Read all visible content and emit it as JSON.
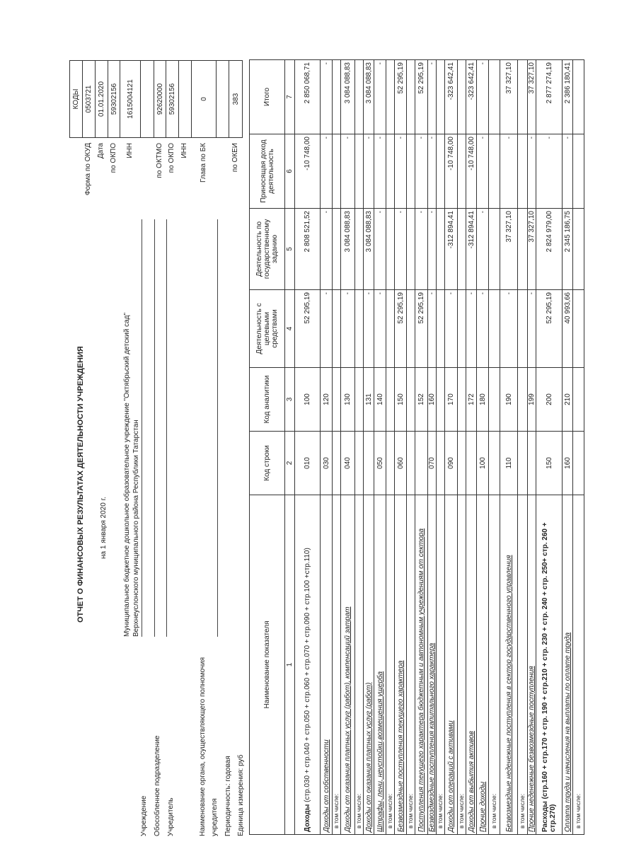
{
  "header": {
    "title": "ОТЧЕТ  О ФИНАНСОВЫХ РЕЗУЛЬТАТАХ ДЕЯТЕЛЬНОСТИ УЧРЕЖДЕНИЯ",
    "date": "на 1 января 2020 г.",
    "institution_label": "Учреждение",
    "institution_line1": "Муниципальное бюджетное дошкольное образовательное учреждение \"Октябрьский детский сад\"",
    "institution_line2": "Верхнеуслонского муниципального района Республики Татарстан",
    "subdivision_label": "Обособленное подразделение",
    "founder_label": "Учредитель",
    "authority_label_1": "Наименование органа, осуществляющего полномочия",
    "authority_label_2": "учредителя",
    "periodicity": "Периодичность:  годовая",
    "unit": "Единица измерения: руб"
  },
  "codes": {
    "header": "КОДЫ",
    "rows": [
      {
        "label": "Форма по ОКУД",
        "value": "0503721"
      },
      {
        "label": "Дата",
        "value": "01.01.2020"
      },
      {
        "label": "по ОКПО",
        "value": "59302156"
      },
      {
        "label": "ИНН",
        "value": "1615004121"
      },
      {
        "label": "",
        "value": ""
      },
      {
        "label": "по ОКТМО",
        "value": "92620000"
      },
      {
        "label": "по ОКПО",
        "value": "59302156"
      },
      {
        "label": "ИНН",
        "value": ""
      },
      {
        "label": "Глава по БК",
        "value": "0"
      },
      {
        "label": "",
        "value": ""
      },
      {
        "label": "по ОКЕИ",
        "value": "383"
      }
    ]
  },
  "table": {
    "columns": [
      "Наименование показателя",
      "Код строки",
      "Код аналитики",
      "Деятельность с целевыми средствами",
      "Деятельность по государственному заданию",
      "Приносящая доход деятельность",
      "Итого"
    ],
    "column_numbers": [
      "1",
      "2",
      "3",
      "4",
      "5",
      "6",
      "7"
    ],
    "rows": [
      {
        "bold": "Доходы",
        "name": " (стр.030 + стр.040 + стр.050 + стр.060 + стр.070 + стр.090 + стр.100 +стр.110)",
        "style": "total",
        "code": "010",
        "an": "100",
        "c4": "52 295,19",
        "c5": "2 808 521,52",
        "c6": "-10 748,00",
        "c7": "2 850 068,71"
      },
      {
        "name": "Доходы от собственности",
        "style": "it",
        "code": "030",
        "an": "120",
        "c4": "-",
        "c5": "-",
        "c6": "-",
        "c7": "-"
      },
      {
        "name": "в том числе:",
        "style": "sub",
        "code": "",
        "an": "",
        "c4": "",
        "c5": "",
        "c6": "",
        "c7": ""
      },
      {
        "name": "Доходы от оказания платных услуг (работ), компенсаций затрат",
        "style": "it",
        "code": "040",
        "an": "130",
        "c4": "-",
        "c5": "3 084 088,83",
        "c6": "-",
        "c7": "3 084 088,83"
      },
      {
        "name": "в том числе:",
        "style": "sub",
        "code": "",
        "an": "",
        "c4": "",
        "c5": "",
        "c6": "",
        "c7": ""
      },
      {
        "name": "Доходы от оказания платных услуг (работ)",
        "style": "it",
        "code": "",
        "an": "131",
        "c4": "-",
        "c5": "3 084 088,83",
        "c6": "-",
        "c7": "3 084 088,83"
      },
      {
        "name": "Штрафы, пени, неустойки,возмещения ущерба",
        "style": "it",
        "code": "050",
        "an": "140",
        "c4": "-",
        "c5": "-",
        "c6": "-",
        "c7": "-"
      },
      {
        "name": "в том числе:",
        "style": "sub",
        "code": "",
        "an": "",
        "c4": "",
        "c5": "",
        "c6": "",
        "c7": ""
      },
      {
        "name": "Безвозмездные поступления текущего характера",
        "style": "it",
        "code": "060",
        "an": "150",
        "c4": "52 295,19",
        "c5": "-",
        "c6": "-",
        "c7": "52 295,19"
      },
      {
        "name": "в том числе:",
        "style": "sub",
        "code": "",
        "an": "",
        "c4": "",
        "c5": "",
        "c6": "",
        "c7": ""
      },
      {
        "name": "Поступления текущего характера бюджетным и автономным учреждениям от сектора",
        "style": "it",
        "code": "",
        "an": "152",
        "c4": "52 295,19",
        "c5": "-",
        "c6": "-",
        "c7": "52 295,19"
      },
      {
        "name": "Безвоздмездные поступления капитального характера",
        "style": "it",
        "code": "070",
        "an": "160",
        "c4": "-",
        "c5": "-",
        "c6": "-",
        "c7": "-"
      },
      {
        "name": "в том числе:",
        "style": "sub",
        "code": "",
        "an": "",
        "c4": "",
        "c5": "",
        "c6": "",
        "c7": ""
      },
      {
        "name": "Доходы от операций с активами",
        "style": "it",
        "code": "090",
        "an": "170",
        "c4": "-",
        "c5": "-312 894,41",
        "c6": "-10 748,00",
        "c7": "-323 642,41"
      },
      {
        "name": "в том числе:",
        "style": "sub",
        "code": "",
        "an": "",
        "c4": "",
        "c5": "",
        "c6": "",
        "c7": ""
      },
      {
        "name": "Доходы от выбытия активов",
        "style": "it",
        "code": "",
        "an": "172",
        "c4": "-",
        "c5": "-312 894,41",
        "c6": "-10 748,00",
        "c7": "-323 642,41"
      },
      {
        "name": "Прочие доходы",
        "style": "it",
        "code": "100",
        "an": "180",
        "c4": "-",
        "c5": "-",
        "c6": "-",
        "c7": "-"
      },
      {
        "name": "в том числе:",
        "style": "sub",
        "code": "",
        "an": "",
        "c4": "",
        "c5": "",
        "c6": "",
        "c7": ""
      },
      {
        "name": "Безвозмездные неденежные поступления в сектор государственного управления",
        "style": "it",
        "code": "110",
        "an": "190",
        "c4": "-",
        "c5": "37 327,10",
        "c6": "-",
        "c7": "37 327,10"
      },
      {
        "name": "в том числе:",
        "style": "sub",
        "code": "",
        "an": "",
        "c4": "",
        "c5": "",
        "c6": "",
        "c7": ""
      },
      {
        "name": "Прочие неденежные безвозмездные поступления",
        "style": "it",
        "code": "",
        "an": "199",
        "c4": "-",
        "c5": "37 327,10",
        "c6": "-",
        "c7": "37 327,10"
      },
      {
        "bold": "Расходы (стр.160 + стр.170 + стр. 190 + стр.210 + стр. 230 + стр. 240 + стр. 250+ стр. 260 + стр.270)",
        "name": "",
        "style": "total",
        "code": "150",
        "an": "200",
        "c4": "52 295,19",
        "c5": "2 824 979,00",
        "c6": "-",
        "c7": "2 877 274,19"
      },
      {
        "name": "Оплата труда и начисления на выплаты по оплате труда",
        "style": "it",
        "code": "160",
        "an": "210",
        "c4": "40 993,66",
        "c5": "2 345 186,75",
        "c6": "-",
        "c7": "2 386 180,41"
      },
      {
        "name": "в том числе:",
        "style": "sub",
        "code": "",
        "an": "",
        "c4": "",
        "c5": "",
        "c6": "",
        "c7": ""
      }
    ]
  }
}
